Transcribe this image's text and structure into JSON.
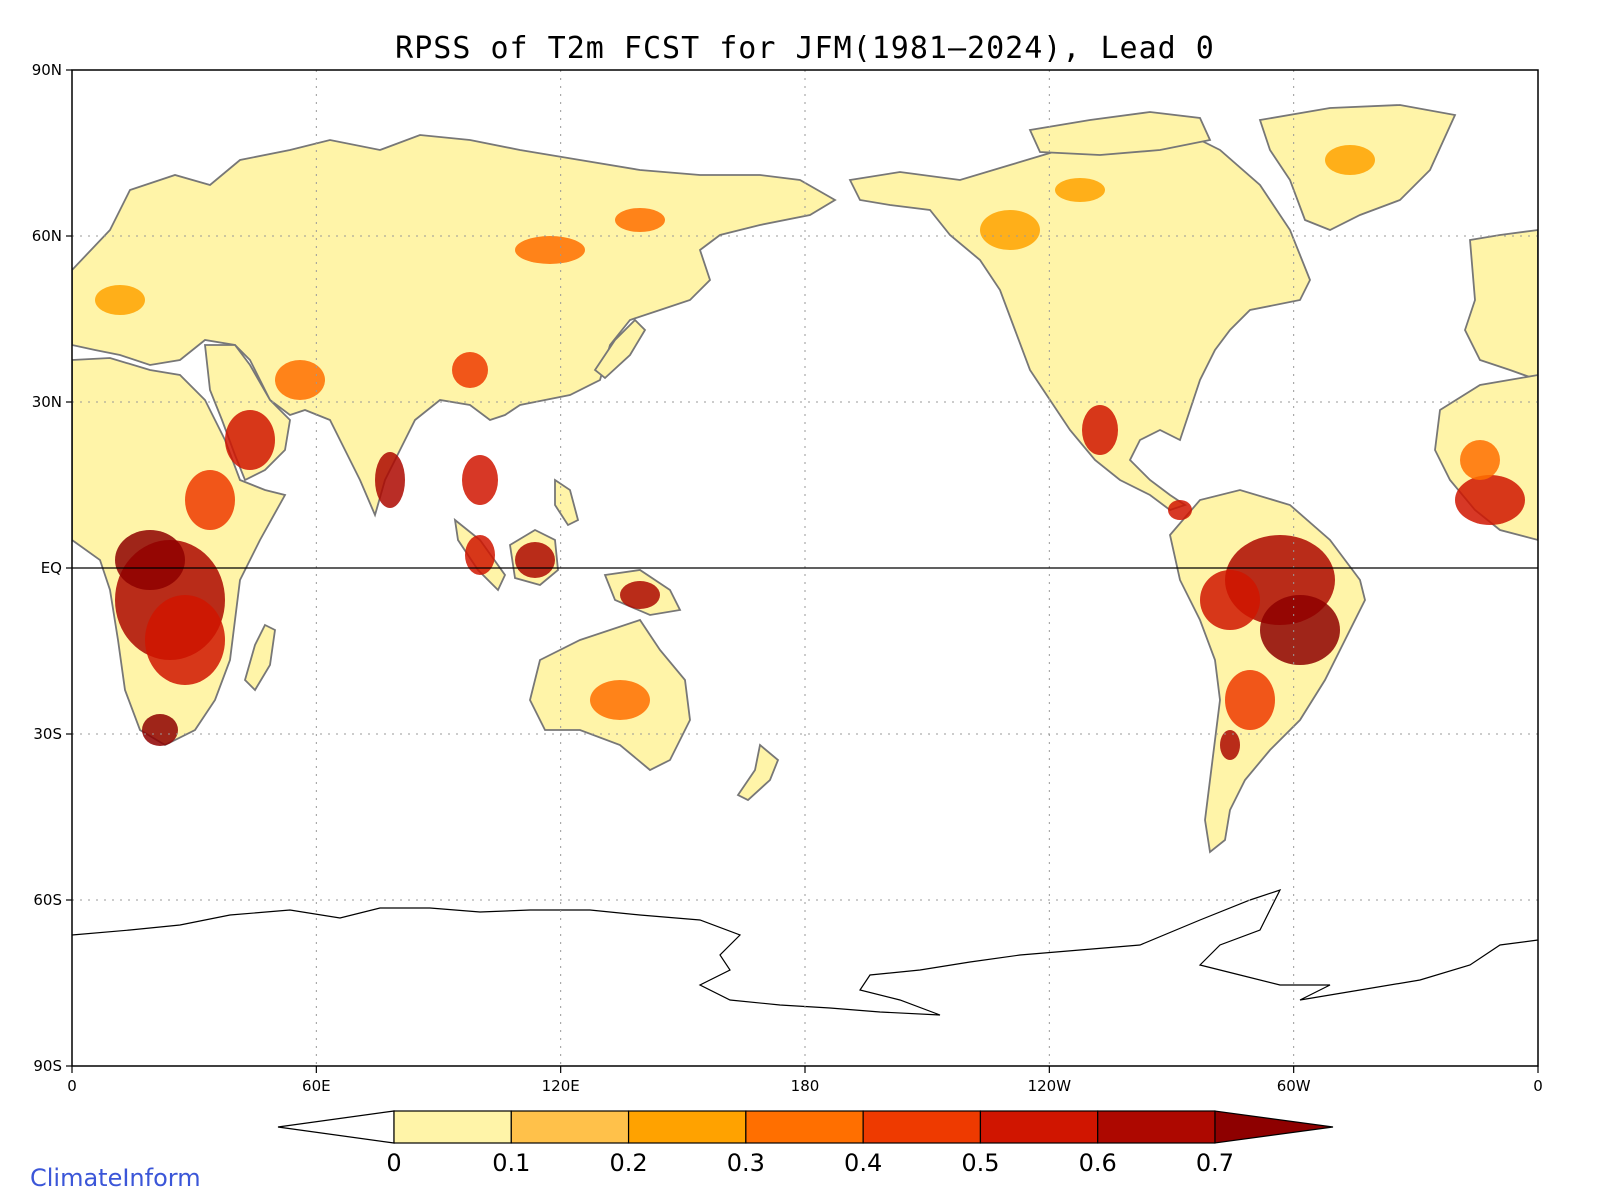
{
  "title": "RPSS of T2m FCST for JFM(1981–2024), Lead 0",
  "credit": "ClimateInform",
  "lat_ticks": [
    {
      "label": "90N",
      "value": 90
    },
    {
      "label": "60N",
      "value": 60
    },
    {
      "label": "30N",
      "value": 30
    },
    {
      "label": "EQ",
      "value": 0
    },
    {
      "label": "30S",
      "value": -30
    },
    {
      "label": "60S",
      "value": -60
    },
    {
      "label": "90S",
      "value": -90
    }
  ],
  "lon_ticks": [
    {
      "label": "0",
      "value": 0
    },
    {
      "label": "60E",
      "value": 60
    },
    {
      "label": "120E",
      "value": 120
    },
    {
      "label": "180",
      "value": 180
    },
    {
      "label": "120W",
      "value": 240
    },
    {
      "label": "60W",
      "value": 300
    },
    {
      "label": "0",
      "value": 360
    }
  ],
  "colorbar": {
    "labels": [
      "0",
      "0.1",
      "0.2",
      "0.3",
      "0.4",
      "0.5",
      "0.6",
      "0.7"
    ],
    "colors": [
      "#fff4a8",
      "#ffc14a",
      "#ffa200",
      "#ff6f00",
      "#ee3a00",
      "#d01500",
      "#ad0800",
      "#8e0000"
    ],
    "under_color": "#ffffff",
    "over_color": "#8e0000"
  },
  "land_base_color": "#fff4a8",
  "coast_color": "#777777"
}
